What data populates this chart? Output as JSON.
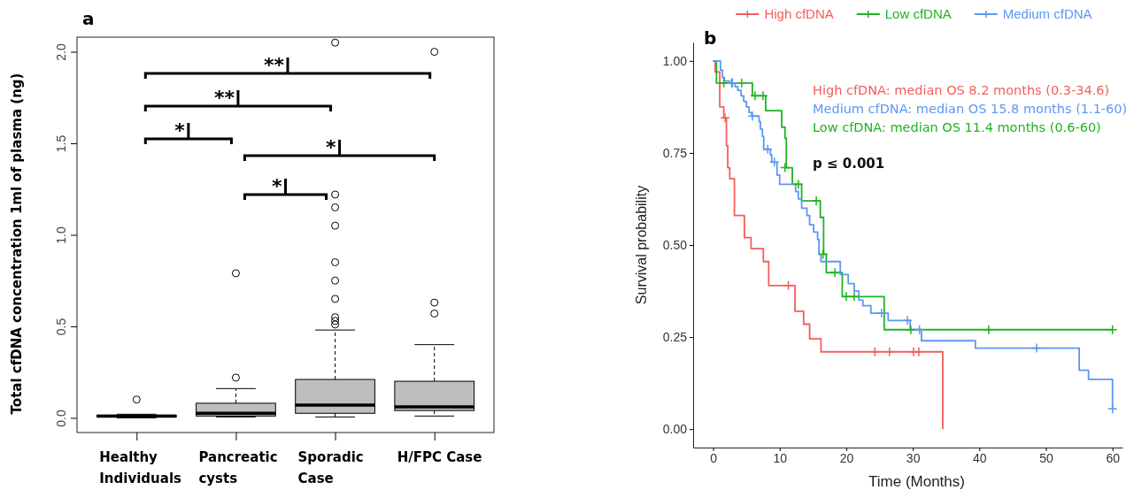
{
  "chart_data": [
    {
      "type": "box",
      "title": "a",
      "ylabel": "Total cfDNA concentration 1ml of plasma (ng)",
      "color": "#bebebe",
      "categories": [
        "Healthy Individuals",
        "Pancreatic cysts",
        "Sporadic Case",
        "H/FPC Case"
      ],
      "ylim": [
        -0.08,
        2.08
      ],
      "yticks": [
        {
          "value": 0,
          "label": "0.0"
        },
        {
          "value": 0.5,
          "label": "0.5"
        },
        {
          "value": 1,
          "label": "1.0"
        },
        {
          "value": 1.5,
          "label": "1.5"
        },
        {
          "value": 2,
          "label": "2.0"
        }
      ],
      "boxes": [
        {
          "low": 0.0,
          "q1": 0.005,
          "median": 0.01,
          "q3": 0.015,
          "high": 0.02,
          "outliers": [
            0.1
          ]
        },
        {
          "low": 0.005,
          "q1": 0.01,
          "median": 0.025,
          "q3": 0.08,
          "high": 0.16,
          "outliers": [
            0.22,
            0.79
          ]
        },
        {
          "low": 0.005,
          "q1": 0.025,
          "median": 0.07,
          "q3": 0.21,
          "high": 0.48,
          "outliers": [
            0.51,
            0.53,
            0.55,
            0.65,
            0.75,
            0.85,
            1.05,
            1.15,
            1.22,
            2.05
          ]
        },
        {
          "low": 0.01,
          "q1": 0.04,
          "median": 0.06,
          "q3": 0.2,
          "high": 0.4,
          "outliers": [
            0.57,
            0.63,
            2.0
          ]
        }
      ],
      "annotations": [
        "**",
        "**",
        "*",
        "*",
        "*"
      ]
    },
    {
      "type": "step",
      "title": "b",
      "xlabel": "Time (Months)",
      "ylabel": "Survival probability",
      "legend": "top",
      "xlim": [
        -3,
        61.5
      ],
      "ylim": [
        -0.05,
        1.05
      ],
      "xticks": [
        0,
        10,
        20,
        30,
        40,
        50,
        60
      ],
      "yticks": [
        {
          "value": 0,
          "label": "0.00"
        },
        {
          "value": 0.25,
          "label": "0.25"
        },
        {
          "value": 0.5,
          "label": "0.50"
        },
        {
          "value": 0.75,
          "label": "0.75"
        },
        {
          "value": 1,
          "label": "1.00"
        }
      ],
      "annotations": [
        "High cfDNA: median OS 8.2 months  (0.3-34.6)",
        "Medium cfDNA: median OS 15.8 months  (1.1-60)",
        "Low cfDNA: median OS 11.4 months  (0.6-60)",
        "p ≤ 0.001"
      ],
      "series": [
        {
          "name": "High cfDNA",
          "color": "#f35e5a",
          "x": [
            0,
            0.3,
            1.0,
            1.6,
            2.0,
            2.2,
            2.5,
            3.2,
            4.7,
            5.7,
            7.55,
            8.35,
            12.3,
            13.6,
            14.5,
            16.2,
            34.5
          ],
          "values": [
            1,
            0.97,
            0.875,
            0.845,
            0.77,
            0.71,
            0.68,
            0.58,
            0.52,
            0.49,
            0.455,
            0.39,
            0.32,
            0.285,
            0.245,
            0.21,
            0
          ]
        },
        {
          "name": "Low cfDNA",
          "color": "#1fb31f",
          "x": [
            0,
            0.5,
            5.9,
            7.9,
            10.3,
            10.8,
            11.0,
            11.9,
            13.3,
            16.1,
            16.6,
            17.0,
            19.4,
            25.7,
            60
          ],
          "values": [
            1,
            0.94,
            0.905,
            0.865,
            0.82,
            0.79,
            0.71,
            0.665,
            0.62,
            0.575,
            0.475,
            0.425,
            0.36,
            0.27,
            0.27
          ]
        },
        {
          "name": "Medium cfDNA",
          "color": "#5b97f5",
          "x": [
            0,
            1.1,
            1.4,
            1.7,
            2.5,
            3.3,
            3.7,
            4.2,
            4.6,
            5.0,
            5.4,
            5.8,
            6.9,
            7.1,
            7.4,
            7.6,
            8.6,
            8.8,
            9.6,
            10.0,
            12.4,
            12.8,
            13.3,
            14.1,
            14.5,
            15.1,
            15.7,
            15.9,
            16.2,
            19.1,
            20.3,
            21.2,
            21.9,
            22.5,
            23.7,
            26.3,
            29.6,
            31.3,
            39.4,
            55.0,
            56.4,
            60
          ],
          "values": [
            1,
            0.975,
            0.955,
            0.945,
            0.94,
            0.93,
            0.92,
            0.905,
            0.89,
            0.875,
            0.86,
            0.85,
            0.835,
            0.815,
            0.795,
            0.76,
            0.745,
            0.725,
            0.69,
            0.665,
            0.645,
            0.625,
            0.6,
            0.58,
            0.555,
            0.535,
            0.515,
            0.475,
            0.455,
            0.42,
            0.395,
            0.375,
            0.35,
            0.335,
            0.315,
            0.295,
            0.27,
            0.24,
            0.22,
            0.16,
            0.135,
            0.055
          ]
        },
        {
          "type": "scatter",
          "marker": "cross",
          "color": "#f35e5a",
          "x": [
            1.8,
            11.3,
            24.3,
            26.5,
            30.1,
            30.9
          ],
          "values": [
            0.845,
            0.39,
            0.21,
            0.21,
            0.21,
            0.21
          ]
        },
        {
          "type": "scatter",
          "marker": "cross",
          "color": "#1fb31f",
          "x": [
            1.6,
            2.8,
            4.3,
            6.3,
            7.5,
            10.8,
            12.8,
            15.5,
            16.5,
            18.3,
            20.0,
            21.2,
            29.7,
            41.4,
            60
          ],
          "values": [
            0.94,
            0.94,
            0.94,
            0.905,
            0.905,
            0.71,
            0.665,
            0.62,
            0.475,
            0.425,
            0.36,
            0.36,
            0.27,
            0.27,
            0.27
          ]
        },
        {
          "type": "scatter",
          "marker": "cross",
          "color": "#5b97f5",
          "x": [
            2.9,
            5.9,
            8.2,
            9.2,
            25.3,
            29.2,
            31.0,
            48.6,
            60
          ],
          "values": [
            0.94,
            0.85,
            0.76,
            0.725,
            0.315,
            0.295,
            0.27,
            0.22,
            0.055
          ]
        }
      ]
    }
  ]
}
